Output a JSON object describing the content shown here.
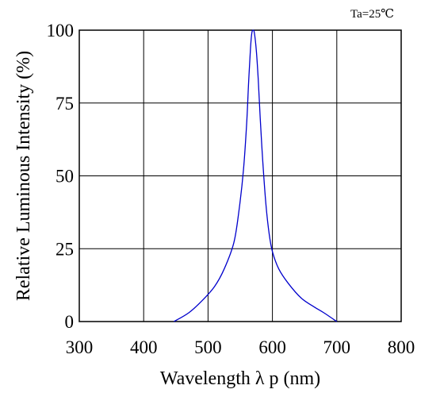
{
  "chart_data": {
    "type": "line",
    "xlabel": "Wavelength λ p (nm)",
    "ylabel": "Relative Luminous Intensity (%)",
    "annotation": "Ta=25℃",
    "xlim": [
      300,
      800
    ],
    "ylim": [
      0,
      100
    ],
    "x_ticks": [
      "300",
      "400",
      "500",
      "600",
      "700",
      "800"
    ],
    "y_ticks": [
      "0",
      "25",
      "50",
      "75",
      "100"
    ],
    "grid": true,
    "series": [
      {
        "color": "#0000cc",
        "points": [
          [
            447,
            0
          ],
          [
            470,
            3
          ],
          [
            490,
            7
          ],
          [
            510,
            12
          ],
          [
            525,
            18
          ],
          [
            540,
            27
          ],
          [
            548,
            38
          ],
          [
            555,
            52
          ],
          [
            560,
            68
          ],
          [
            563,
            82
          ],
          [
            566,
            94
          ],
          [
            568,
            99
          ],
          [
            570,
            100
          ],
          [
            572,
            99
          ],
          [
            575,
            93
          ],
          [
            578,
            83
          ],
          [
            581,
            70
          ],
          [
            585,
            55
          ],
          [
            590,
            40
          ],
          [
            595,
            30
          ],
          [
            600,
            24
          ],
          [
            610,
            18
          ],
          [
            625,
            13
          ],
          [
            645,
            8
          ],
          [
            665,
            5
          ],
          [
            680,
            3
          ],
          [
            700,
            0
          ]
        ]
      }
    ]
  }
}
